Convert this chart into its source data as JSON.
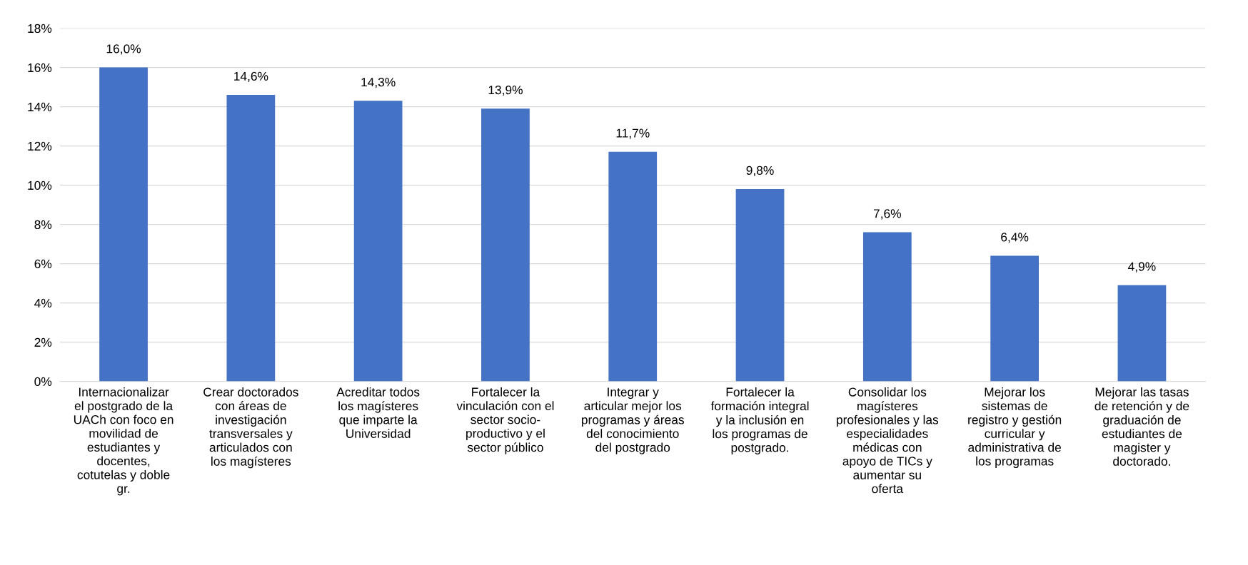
{
  "chart_data": {
    "type": "bar",
    "categories": [
      "Internacionalizar\nel postgrado de la\nUACh con foco en\nmovilidad de\nestudiantes y\ndocentes,\ncotutelas y doble\ngr.",
      "Crear doctorados\ncon áreas de\ninvestigación\ntransversales y\narticulados con\nlos magísteres",
      "Acreditar todos\nlos magísteres\nque imparte la\nUniversidad",
      "Fortalecer la\nvinculación con el\nsector socio-\nproductivo y el\nsector público",
      "Integrar y\narticular mejor los\nprogramas y áreas\ndel conocimiento\ndel postgrado",
      "Fortalecer la\nformación integral\ny la inclusión en\nlos programas de\npostgrado.",
      "Consolidar los\nmagísteres\nprofesionales y las\nespecialidades\nmédicas con\napoyo de TICs y\naumentar su\noferta",
      "Mejorar los\nsistemas de\nregistro y gestión\ncurricular y\nadministrativa de\nlos programas",
      "Mejorar las tasas\nde retención y de\ngraduación de\nestudiantes de\nmagister y\ndoctorado."
    ],
    "values": [
      16.0,
      14.6,
      14.3,
      13.9,
      11.7,
      9.8,
      7.6,
      6.4,
      4.9
    ],
    "value_labels": [
      "16,0%",
      "14,6%",
      "14,3%",
      "13,9%",
      "11,7%",
      "9,8%",
      "7,6%",
      "6,4%",
      "4,9%"
    ],
    "color": "#4472c4",
    "ylim": [
      0,
      18
    ],
    "yticks": [
      {
        "value": 0,
        "label": "0%"
      },
      {
        "value": 2,
        "label": "2%"
      },
      {
        "value": 4,
        "label": "4%"
      },
      {
        "value": 6,
        "label": "6%"
      },
      {
        "value": 8,
        "label": "8%"
      },
      {
        "value": 10,
        "label": "10%"
      },
      {
        "value": 12,
        "label": "12%"
      },
      {
        "value": 14,
        "label": "14%"
      },
      {
        "value": 16,
        "label": "16%"
      },
      {
        "value": 18,
        "label": "18%"
      }
    ],
    "grid": "y",
    "legend": false
  }
}
